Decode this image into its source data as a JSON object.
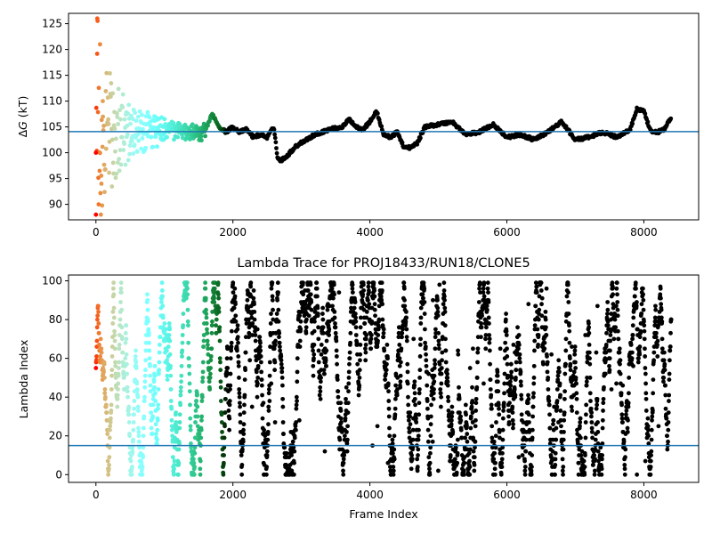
{
  "chart_data": [
    {
      "type": "scatter",
      "title": "",
      "xlabel": "",
      "ylabel": "ΔG (kT)",
      "ylabel_symbol": "Δ",
      "ylabel_var": "G",
      "ylabel_unit": " (kT)",
      "xlim": [
        -400,
        8800
      ],
      "ylim": [
        87,
        127
      ],
      "xticks": [
        0,
        2000,
        4000,
        6000,
        8000
      ],
      "xtick_labels": [
        "0",
        "2000",
        "4000",
        "6000",
        "8000"
      ],
      "yticks": [
        90,
        95,
        100,
        105,
        110,
        115,
        120,
        125
      ],
      "ytick_labels": [
        "90",
        "95",
        "100",
        "105",
        "110",
        "115",
        "120",
        "125"
      ],
      "reference_line": 104.1,
      "reference_color": "#1f77b4",
      "colormap": "rainbow (early frames red → late frames violet)",
      "grid": false,
      "series": [
        {
          "values_description": "running free-energy estimate per frame",
          "x": [
            0,
            20,
            40,
            60,
            80,
            100,
            150,
            200,
            250,
            300,
            400,
            500,
            600,
            800,
            1000,
            1200,
            1400,
            1600,
            1700,
            1800,
            1900,
            2000,
            2100,
            2200,
            2300,
            2400,
            2500,
            2600,
            2650,
            2700,
            2800,
            2900,
            3000,
            3200,
            3400,
            3600,
            3700,
            3800,
            3900,
            4000,
            4100,
            4200,
            4300,
            4400,
            4500,
            4600,
            4700,
            4800,
            5000,
            5200,
            5400,
            5600,
            5800,
            6000,
            6200,
            6400,
            6600,
            6800,
            7000,
            7200,
            7400,
            7600,
            7800,
            7900,
            8000,
            8100,
            8200,
            8300,
            8400
          ],
          "y": [
            100,
            126,
            90,
            121,
            94,
            110,
            99,
            113,
            101,
            107,
            103,
            106,
            104,
            108,
            109,
            105,
            104,
            104.5,
            107.5,
            105,
            104,
            105,
            104,
            104.5,
            103,
            103.5,
            103,
            105,
            99,
            98.5,
            99.5,
            101,
            102,
            103.5,
            104.5,
            105,
            106.5,
            105,
            104.5,
            106,
            108,
            103.5,
            103,
            104,
            101,
            101,
            102,
            105,
            105.5,
            106,
            103.5,
            104,
            105.5,
            103,
            103.5,
            102.5,
            104,
            106,
            102.5,
            103,
            104,
            103,
            104.5,
            108.5,
            108,
            104,
            104,
            104.5,
            107
          ]
        }
      ]
    },
    {
      "type": "scatter",
      "title": "Lambda Trace for PROJ18433/RUN18/CLONE5",
      "xlabel": "Frame Index",
      "ylabel": "Lambda Index",
      "xlim": [
        -400,
        8800
      ],
      "ylim": [
        -4,
        103
      ],
      "xticks": [
        0,
        2000,
        4000,
        6000,
        8000
      ],
      "xtick_labels": [
        "0",
        "2000",
        "4000",
        "6000",
        "8000"
      ],
      "yticks": [
        0,
        20,
        40,
        60,
        80,
        100
      ],
      "ytick_labels": [
        "0",
        "20",
        "40",
        "60",
        "80",
        "100"
      ],
      "reference_line": 15,
      "reference_color": "#1f77b4",
      "colormap": "rainbow (early frames red → late frames violet)",
      "grid": false,
      "series": [
        {
          "values_description": "lambda index sampled at each frame, spanning 0–99 across frames 0–8400",
          "x_range": [
            0,
            8400
          ],
          "y_range": [
            0,
            99
          ]
        }
      ]
    }
  ]
}
